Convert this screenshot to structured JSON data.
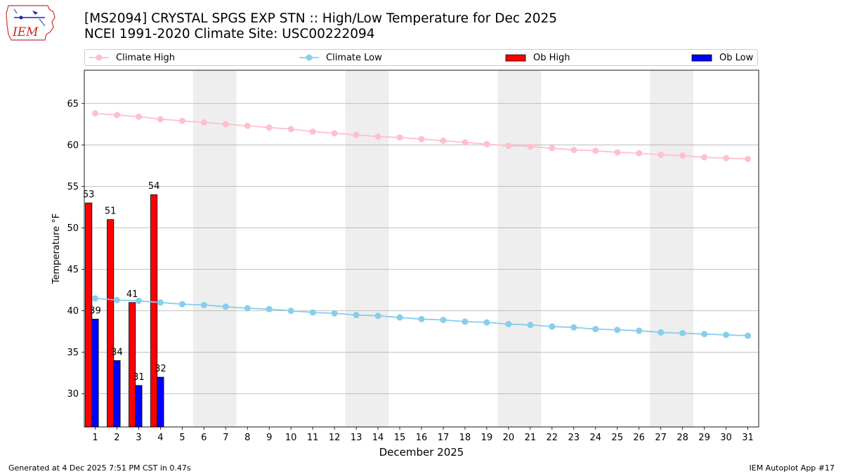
{
  "header": {
    "title_line1": "[MS2094] CRYSTAL SPGS EXP STN :: High/Low Temperature for Dec 2025",
    "title_line2": "NCEI 1991-2020 Climate Site: USC00222094"
  },
  "logo": {
    "text": "IEM",
    "icon": "iem-iowa-map-logo-icon"
  },
  "footer": {
    "left": "Generated at 4 Dec 2025 7:51 PM CST in 0.47s",
    "right": "IEM Autoplot App #17"
  },
  "colors": {
    "climate_high": "#ffc0cb",
    "climate_low": "#87ceeb",
    "ob_high": "#ff0000",
    "ob_low": "#0000ff",
    "weekend_shade": "#eeeeee",
    "grid": "#b0b0b0"
  },
  "chart_data": {
    "type": "bar",
    "xlabel": "December 2025",
    "ylabel": "Temperature °F",
    "ylim": [
      26,
      69
    ],
    "yticks": [
      30,
      35,
      40,
      45,
      50,
      55,
      60,
      65
    ],
    "xlim": [
      0.5,
      31.5
    ],
    "days": [
      1,
      2,
      3,
      4,
      5,
      6,
      7,
      8,
      9,
      10,
      11,
      12,
      13,
      14,
      15,
      16,
      17,
      18,
      19,
      20,
      21,
      22,
      23,
      24,
      25,
      26,
      27,
      28,
      29,
      30,
      31
    ],
    "grid": "horizontal",
    "legend_position": "top",
    "shaded_weekend_spans": [
      [
        5.5,
        7.5
      ],
      [
        12.5,
        14.5
      ],
      [
        19.5,
        21.5
      ],
      [
        26.5,
        28.5
      ]
    ],
    "series": [
      {
        "name": "Climate High",
        "kind": "line",
        "values": [
          63.8,
          63.6,
          63.4,
          63.1,
          62.9,
          62.7,
          62.5,
          62.3,
          62.1,
          61.9,
          61.6,
          61.4,
          61.2,
          61.0,
          60.9,
          60.7,
          60.5,
          60.3,
          60.1,
          59.9,
          59.8,
          59.6,
          59.4,
          59.3,
          59.1,
          59.0,
          58.8,
          58.7,
          58.5,
          58.4,
          58.3
        ]
      },
      {
        "name": "Climate Low",
        "kind": "line",
        "values": [
          41.5,
          41.3,
          41.2,
          41.0,
          40.8,
          40.7,
          40.5,
          40.3,
          40.2,
          40.0,
          39.8,
          39.7,
          39.5,
          39.4,
          39.2,
          39.0,
          38.9,
          38.7,
          38.6,
          38.4,
          38.3,
          38.1,
          38.0,
          37.8,
          37.7,
          37.6,
          37.4,
          37.3,
          37.2,
          37.1,
          37.0
        ]
      },
      {
        "name": "Ob High",
        "kind": "bar",
        "days": [
          1,
          2,
          3,
          4
        ],
        "values": [
          53,
          51,
          41,
          54
        ]
      },
      {
        "name": "Ob Low",
        "kind": "bar",
        "days": [
          1,
          2,
          3,
          4
        ],
        "values": [
          39,
          34,
          31,
          32
        ]
      }
    ]
  }
}
